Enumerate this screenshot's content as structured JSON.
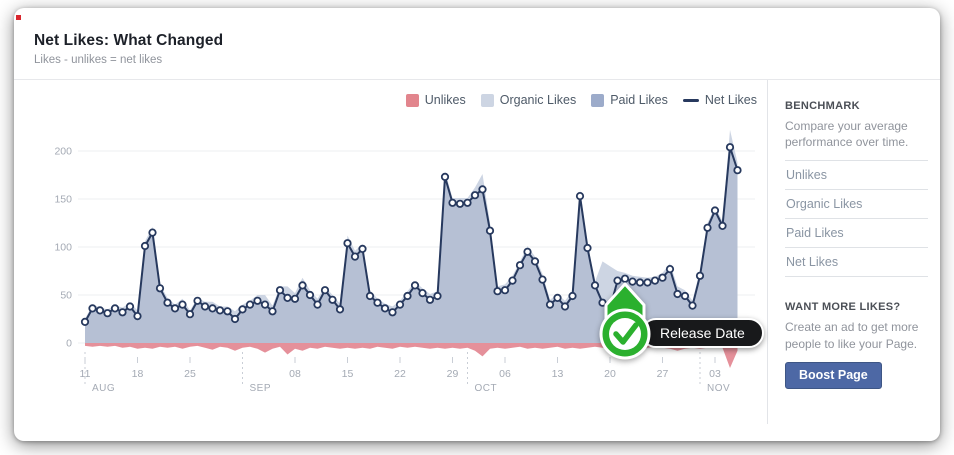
{
  "card": {
    "title": "Net Likes: What Changed",
    "subtitle": "Likes - unlikes = net likes"
  },
  "legend": [
    {
      "label": "Unlikes",
      "type": "swatch",
      "color": "#e2858d"
    },
    {
      "label": "Organic Likes",
      "type": "swatch",
      "color": "#cdd5e3"
    },
    {
      "label": "Paid Likes",
      "type": "swatch",
      "color": "#9cabca"
    },
    {
      "label": "Net Likes",
      "type": "line",
      "color": "#27395e"
    }
  ],
  "chart_data": {
    "type": "area",
    "title": "Net Likes: What Changed",
    "start_date": "Aug 11",
    "end_date": "Nov 06",
    "ylim": [
      -30,
      230
    ],
    "yticks": [
      "0",
      "50",
      "100",
      "150",
      "200"
    ],
    "ytick_values": [
      0,
      50,
      100,
      150,
      200
    ],
    "x_ticks": [
      {
        "label": "11",
        "day": 0
      },
      {
        "label": "18",
        "day": 7
      },
      {
        "label": "25",
        "day": 14
      },
      {
        "label": "08",
        "day": 28
      },
      {
        "label": "15",
        "day": 35
      },
      {
        "label": "22",
        "day": 42
      },
      {
        "label": "29",
        "day": 49
      },
      {
        "label": "06",
        "day": 56
      },
      {
        "label": "13",
        "day": 63
      },
      {
        "label": "20",
        "day": 70
      },
      {
        "label": "27",
        "day": 77
      },
      {
        "label": "03",
        "day": 84
      }
    ],
    "months": [
      {
        "label": "AUG",
        "day": 0
      },
      {
        "label": "SEP",
        "day": 21
      },
      {
        "label": "OCT",
        "day": 51
      },
      {
        "label": "NOV",
        "day": 82
      }
    ],
    "series": [
      {
        "name": "Net Likes",
        "color": "#27395e",
        "values": [
          22,
          36,
          34,
          31,
          36,
          32,
          38,
          28,
          101,
          115,
          57,
          42,
          36,
          40,
          30,
          44,
          38,
          36,
          34,
          33,
          25,
          35,
          40,
          44,
          40,
          33,
          55,
          47,
          46,
          60,
          50,
          40,
          55,
          45,
          35,
          104,
          90,
          98,
          49,
          42,
          36,
          32,
          40,
          49,
          60,
          52,
          45,
          49,
          173,
          146,
          145,
          146,
          154,
          160,
          117,
          54,
          55,
          65,
          81,
          95,
          85,
          66,
          40,
          47,
          38,
          49,
          153,
          99,
          60,
          42,
          36,
          65,
          67,
          64,
          63,
          63,
          65,
          68,
          77,
          51,
          49,
          39,
          70,
          120,
          138,
          122,
          204,
          180
        ]
      },
      {
        "name": "Organic Likes",
        "color": "#cdd5e3",
        "values": [
          25,
          40,
          37,
          35,
          39,
          37,
          42,
          34,
          106,
          121,
          61,
          47,
          40,
          46,
          34,
          47,
          43,
          43,
          38,
          38,
          33,
          40,
          44,
          50,
          50,
          39,
          59,
          59,
          52,
          68,
          55,
          46,
          59,
          50,
          41,
          112,
          96,
          103,
          55,
          46,
          41,
          38,
          44,
          54,
          64,
          57,
          51,
          54,
          179,
          151,
          151,
          151,
          162,
          176,
          125,
          59,
          61,
          70,
          85,
          101,
          90,
          72,
          45,
          51,
          44,
          54,
          160,
          104,
          64,
          85,
          80,
          75,
          73,
          70,
          69,
          68,
          69,
          73,
          83,
          59,
          55,
          44,
          76,
          125,
          142,
          127,
          222,
          188
        ]
      },
      {
        "name": "Unlikes",
        "color": "#e5909a",
        "values": [
          -3,
          -4,
          -3,
          -4,
          -3,
          -5,
          -4,
          -6,
          -5,
          -6,
          -4,
          -5,
          -4,
          -6,
          -4,
          -3,
          -5,
          -7,
          -4,
          -5,
          -8,
          -5,
          -4,
          -6,
          -10,
          -6,
          -4,
          -12,
          -6,
          -8,
          -5,
          -6,
          -4,
          -5,
          -6,
          -5,
          -6,
          -5,
          -6,
          -4,
          -5,
          -6,
          -4,
          -5,
          -4,
          -5,
          -6,
          -5,
          -6,
          -5,
          -6,
          -5,
          -8,
          -14,
          -6,
          -5,
          -6,
          -5,
          -4,
          -6,
          -5,
          -6,
          -5,
          -4,
          -6,
          -5,
          -6,
          -5,
          -4,
          -5,
          -6,
          -5,
          -6,
          -5,
          -6,
          -5,
          -4,
          -5,
          -6,
          -8,
          -6,
          -5,
          -6,
          -5,
          -4,
          -5,
          -26,
          -8
        ]
      }
    ],
    "net_fill_color": "#b6c0d4",
    "annotation": {
      "label": "Release Date",
      "day": 72,
      "badge_color": "#2bb02e"
    }
  },
  "sidebar": {
    "benchmark": {
      "heading": "BENCHMARK",
      "description": "Compare your average performance over time.",
      "items": [
        "Unlikes",
        "Organic Likes",
        "Paid Likes",
        "Net Likes"
      ]
    },
    "promo": {
      "heading": "WANT MORE LIKES?",
      "description": "Create an ad to get more people to like your Page.",
      "button": "Boost Page"
    }
  }
}
